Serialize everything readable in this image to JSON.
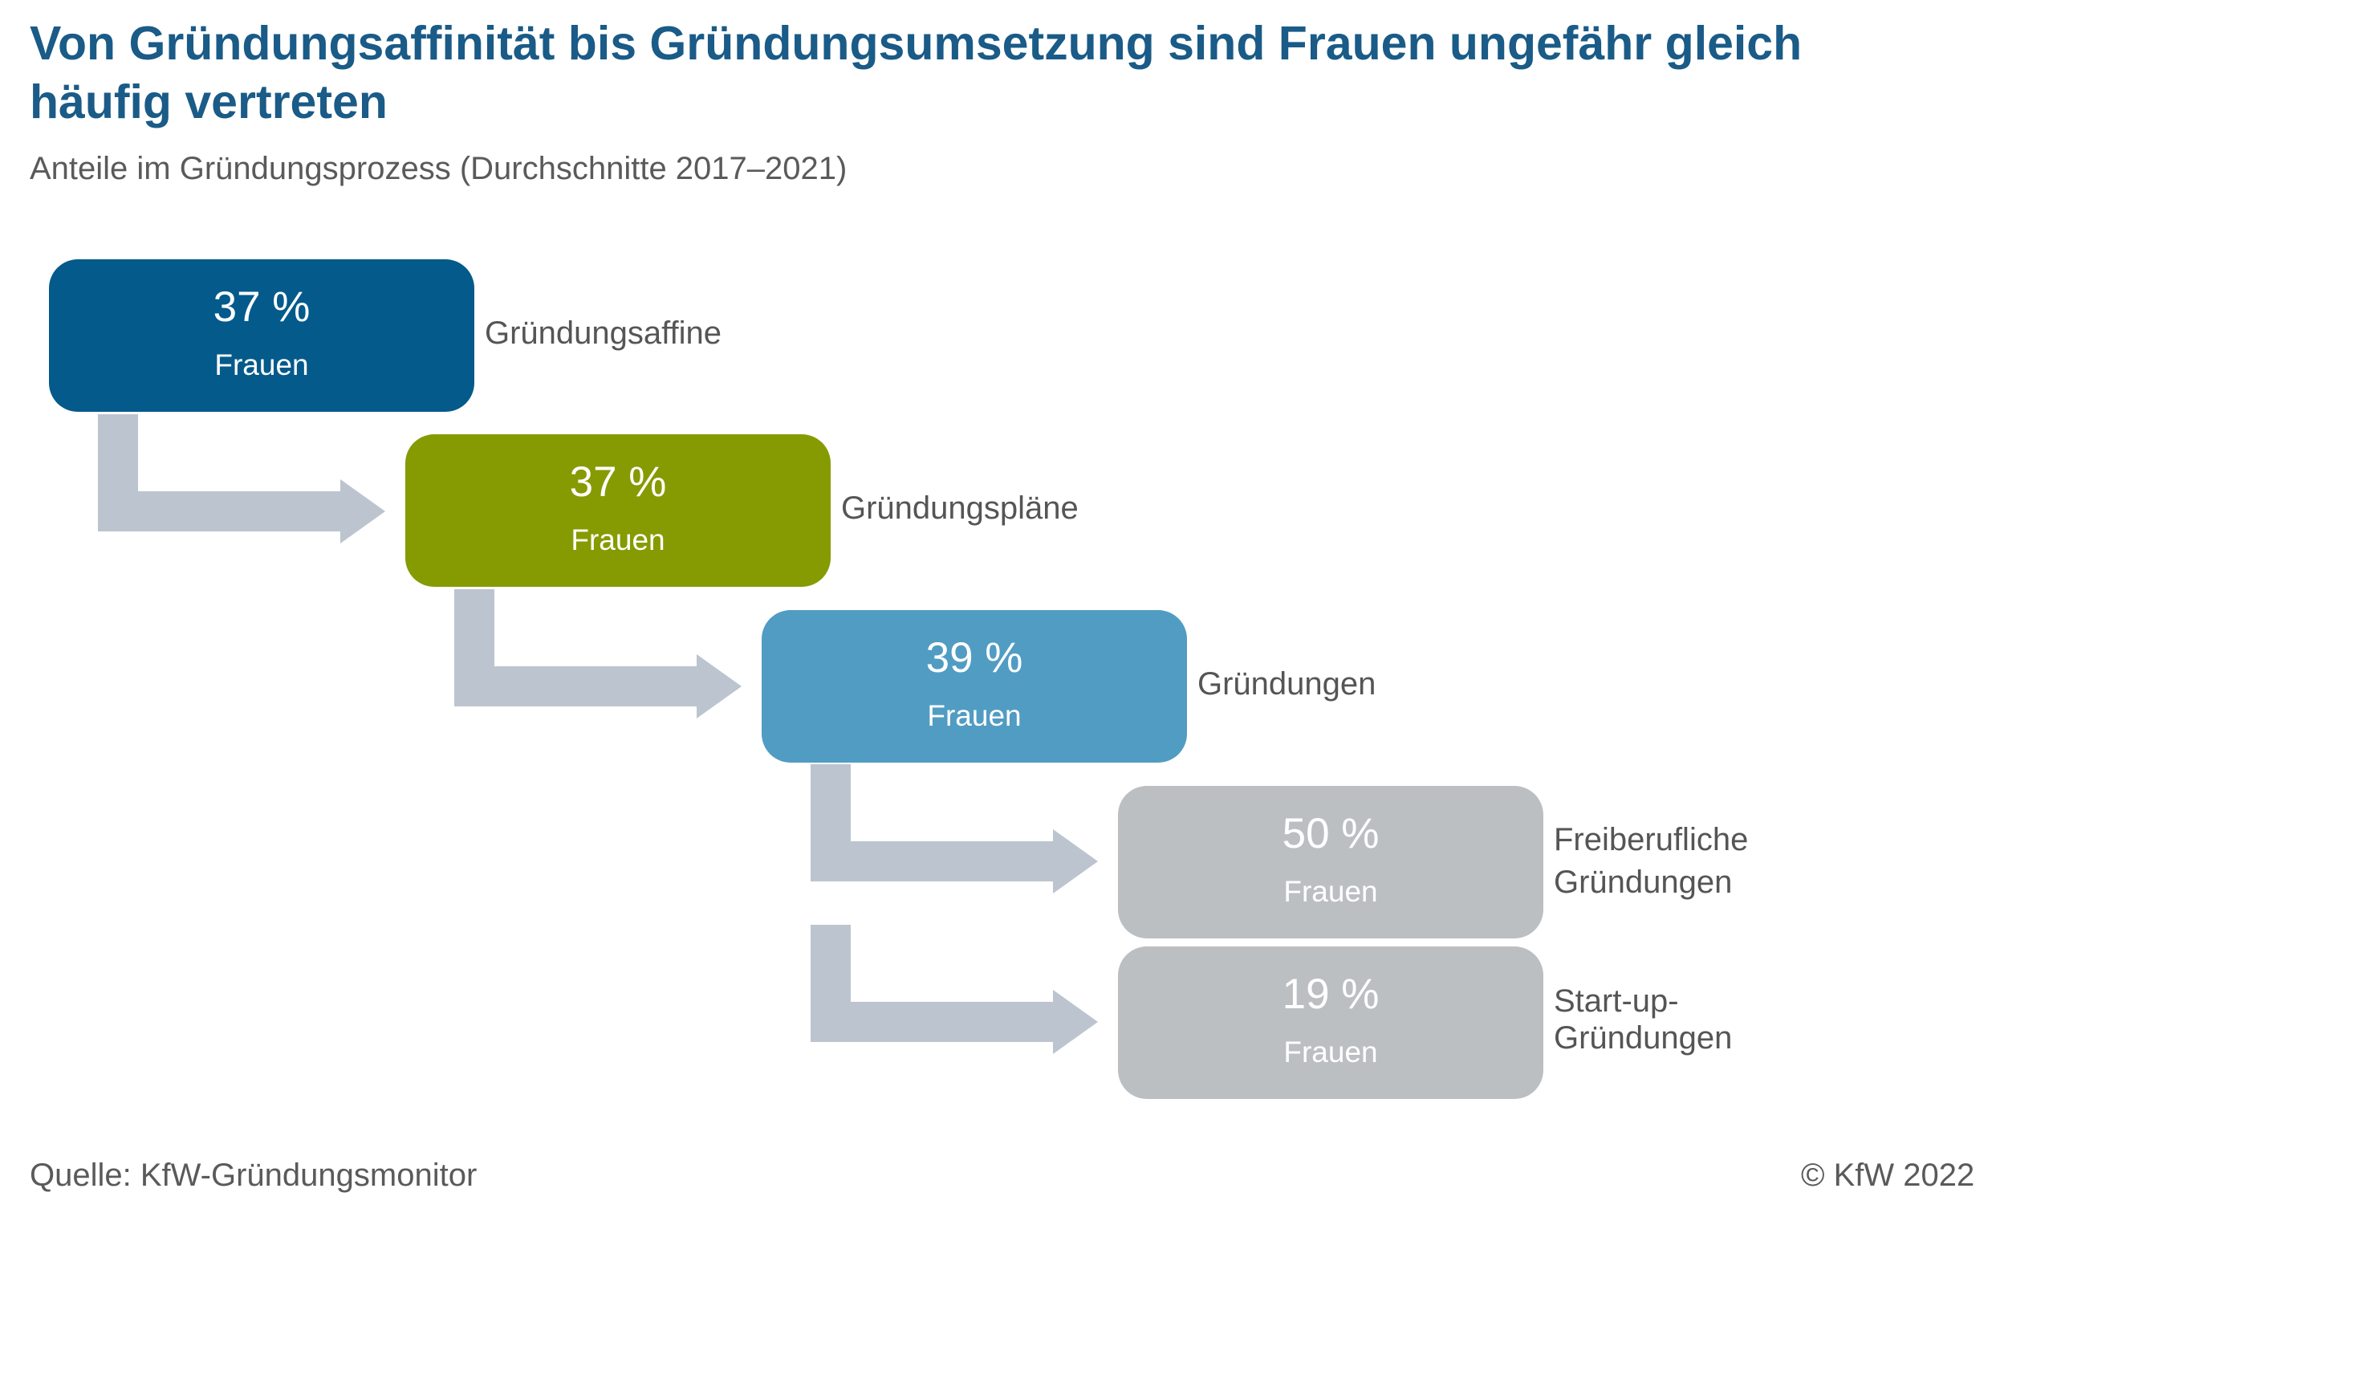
{
  "title": "Von Gründungsaffinität bis Gründungsumsetzung sind Frauen ungefähr gleich häufig vertreten",
  "subtitle": "Anteile im Gründungsprozess (Durchschnitte 2017–2021)",
  "stages": [
    {
      "value": "37 %",
      "unit_label": "Frauen",
      "name_lines": [
        "Gründungsaffine"
      ],
      "color": "#045a8a"
    },
    {
      "value": "37 %",
      "unit_label": "Frauen",
      "name_lines": [
        "Gründungspläne"
      ],
      "color": "#869b02"
    },
    {
      "value": "39 %",
      "unit_label": "Frauen",
      "name_lines": [
        "Gründungen"
      ],
      "color": "#519cc3"
    },
    {
      "value": "50 %",
      "unit_label": "Frauen",
      "name_lines": [
        "Freiberufliche",
        "Gründungen"
      ],
      "color": "#bcbfc2"
    },
    {
      "value": "19 %",
      "unit_label": "Frauen",
      "name_lines": [
        "Start-up-",
        "Gründungen"
      ],
      "color": "#bcbfc2"
    }
  ],
  "arrow_color": "#bcc4cf",
  "footer": {
    "source": "Quelle: KfW-Gründungsmonitor",
    "copyright": "© KfW 2022"
  }
}
